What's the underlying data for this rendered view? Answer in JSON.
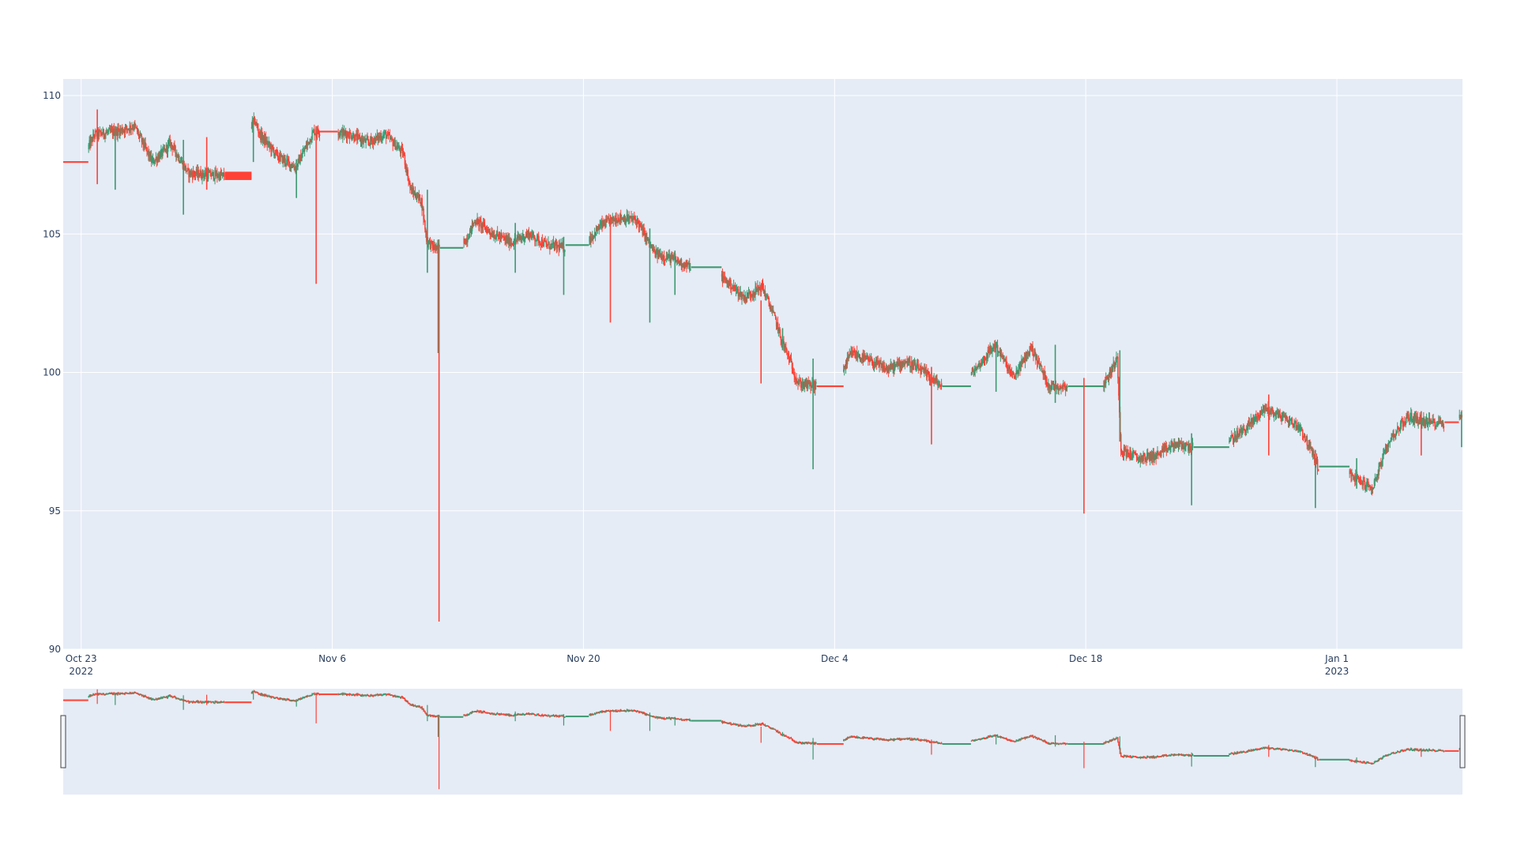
{
  "chart_data": {
    "type": "candlestick",
    "title": "",
    "xlabel": "",
    "ylabel": "",
    "ylim": [
      90,
      110.6
    ],
    "xlim": [
      "2022-10-22",
      "2023-01-08"
    ],
    "grid": true,
    "legend": "none",
    "rangeslider": true,
    "colors": {
      "increasing": "#3d9970",
      "decreasing": "#ff4136",
      "plot_bg": "#e5ecf6",
      "grid": "#ffffff",
      "tick_text": "#2a3f5f"
    },
    "y_ticks": [
      {
        "value": 90,
        "label": "90"
      },
      {
        "value": 95,
        "label": "95"
      },
      {
        "value": 100,
        "label": "100"
      },
      {
        "value": 105,
        "label": "105"
      },
      {
        "value": 110,
        "label": "110"
      }
    ],
    "x_ticks": [
      {
        "date": "2022-10-23",
        "label": "Oct 23",
        "sublabel": "2022"
      },
      {
        "date": "2022-11-06",
        "label": "Nov 6",
        "sublabel": ""
      },
      {
        "date": "2022-11-20",
        "label": "Nov 20",
        "sublabel": ""
      },
      {
        "date": "2022-12-04",
        "label": "Dec 4",
        "sublabel": ""
      },
      {
        "date": "2022-12-18",
        "label": "Dec 18",
        "sublabel": ""
      },
      {
        "date": "2023-01-01",
        "label": "Jan 1",
        "sublabel": "2023"
      }
    ],
    "price_path": [
      [
        "2022-10-22",
        107.6
      ],
      [
        "2022-10-23",
        107.6
      ],
      [
        "2022-10-23.8",
        108.6
      ],
      [
        "2022-10-25",
        108.7
      ],
      [
        "2022-10-26",
        108.9
      ],
      [
        "2022-10-27",
        107.6
      ],
      [
        "2022-10-27.7",
        108.0
      ],
      [
        "2022-10-28",
        108.3
      ],
      [
        "2022-10-29",
        107.2
      ],
      [
        "2022-10-31",
        107.1
      ],
      [
        "2022-11-01",
        108.4
      ],
      [
        "2022-11-01.7",
        109.1
      ],
      [
        "2022-11-02",
        108.6
      ],
      [
        "2022-11-03",
        107.8
      ],
      [
        "2022-11-04",
        107.4
      ],
      [
        "2022-11-05",
        108.7
      ],
      [
        "2022-11-05.3",
        108.7
      ],
      [
        "2022-11-06",
        108.7
      ],
      [
        "2022-11-07",
        108.6
      ],
      [
        "2022-11-08",
        108.3
      ],
      [
        "2022-11-09",
        108.6
      ],
      [
        "2022-11-10",
        107.9
      ],
      [
        "2022-11-10.4",
        106.6
      ],
      [
        "2022-11-11",
        106.2
      ],
      [
        "2022-11-11.3",
        104.8
      ],
      [
        "2022-11-11.7",
        104.5
      ],
      [
        "2022-11-12",
        104.5
      ],
      [
        "2022-11-13",
        104.5
      ],
      [
        "2022-11-13.5",
        104.8
      ],
      [
        "2022-11-14",
        105.5
      ],
      [
        "2022-11-15",
        105.0
      ],
      [
        "2022-11-16",
        104.7
      ],
      [
        "2022-11-17",
        105.0
      ],
      [
        "2022-11-18",
        104.6
      ],
      [
        "2022-11-19",
        104.5
      ],
      [
        "2022-11-20",
        104.5
      ],
      [
        "2022-11-21",
        105.3
      ],
      [
        "2022-11-22",
        105.6
      ],
      [
        "2022-11-23",
        105.5
      ],
      [
        "2022-11-24",
        104.3
      ],
      [
        "2022-11-25",
        104.1
      ],
      [
        "2022-11-26",
        103.8
      ],
      [
        "2022-11-27",
        103.8
      ],
      [
        "2022-11-28",
        103.3
      ],
      [
        "2022-11-29",
        102.7
      ],
      [
        "2022-11-30",
        103.1
      ],
      [
        "2022-11-30.8",
        101.8
      ],
      [
        "2022-12-01",
        101.3
      ],
      [
        "2022-12-01.5",
        100.5
      ],
      [
        "2022-12-02",
        99.6
      ],
      [
        "2022-12-03",
        99.5
      ],
      [
        "2022-12-04",
        99.5
      ],
      [
        "2022-12-05",
        100.7
      ],
      [
        "2022-12-06",
        100.4
      ],
      [
        "2022-12-07",
        100.1
      ],
      [
        "2022-12-08",
        100.4
      ],
      [
        "2022-12-09",
        100.0
      ],
      [
        "2022-12-10",
        99.5
      ],
      [
        "2022-12-11",
        99.5
      ],
      [
        "2022-12-12",
        100.2
      ],
      [
        "2022-12-13",
        101.0
      ],
      [
        "2022-12-14",
        99.8
      ],
      [
        "2022-12-15",
        100.9
      ],
      [
        "2022-12-16",
        99.5
      ],
      [
        "2022-12-17",
        99.5
      ],
      [
        "2022-12-18",
        99.5
      ],
      [
        "2022-12-19",
        99.5
      ],
      [
        "2022-12-19.8",
        100.5
      ],
      [
        "2022-12-20",
        97.2
      ],
      [
        "2022-12-21",
        96.9
      ],
      [
        "2022-12-22",
        97.0
      ],
      [
        "2022-12-23",
        97.4
      ],
      [
        "2022-12-24",
        97.3
      ],
      [
        "2022-12-25",
        97.3
      ],
      [
        "2022-12-26",
        97.5
      ],
      [
        "2022-12-27",
        98.0
      ],
      [
        "2022-12-28",
        98.7
      ],
      [
        "2022-12-29",
        98.4
      ],
      [
        "2022-12-30",
        98.0
      ],
      [
        "2022-12-31",
        96.6
      ],
      [
        "2023-01-01",
        96.6
      ],
      [
        "2023-01-02",
        96.2
      ],
      [
        "2023-01-03",
        95.8
      ],
      [
        "2023-01-04",
        97.6
      ],
      [
        "2023-01-05",
        98.4
      ],
      [
        "2023-01-06",
        98.2
      ],
      [
        "2023-01-07",
        98.2
      ],
      [
        "2023-01-08",
        98.4
      ]
    ],
    "flat_segments": [
      {
        "start": "2022-10-22",
        "end": "2022-10-23.4",
        "price": 107.6,
        "direction": "down"
      },
      {
        "start": "2022-10-31",
        "end": "2022-11-01.5",
        "price": 107.1,
        "direction": "down",
        "body_low": 106.95,
        "body_high": 107.25
      },
      {
        "start": "2022-11-05.3",
        "end": "2022-11-06.3",
        "price": 108.7,
        "direction": "down"
      },
      {
        "start": "2022-11-12",
        "end": "2022-11-13.3",
        "price": 104.5,
        "direction": "up"
      },
      {
        "start": "2022-11-19",
        "end": "2022-11-20.3",
        "price": 104.6,
        "direction": "up"
      },
      {
        "start": "2022-11-26",
        "end": "2022-11-27.7",
        "price": 103.8,
        "direction": "up"
      },
      {
        "start": "2022-12-03",
        "end": "2022-12-04.5",
        "price": 99.5,
        "direction": "down"
      },
      {
        "start": "2022-12-10",
        "end": "2022-12-11.6",
        "price": 99.5,
        "direction": "up"
      },
      {
        "start": "2022-12-17",
        "end": "2022-12-19",
        "price": 99.5,
        "direction": "up"
      },
      {
        "start": "2022-12-24",
        "end": "2022-12-26",
        "price": 97.3,
        "direction": "up"
      },
      {
        "start": "2022-12-31",
        "end": "2023-01-01.7",
        "price": 96.6,
        "direction": "up"
      },
      {
        "start": "2023-01-07",
        "end": "2023-01-07.8",
        "price": 98.2,
        "direction": "down"
      }
    ],
    "spikes": [
      {
        "date": "2022-10-23.9",
        "low": 106.8,
        "high": 109.5
      },
      {
        "date": "2022-10-24.9",
        "low": 106.6,
        "high": 108.9
      },
      {
        "date": "2022-10-28.7",
        "low": 105.7,
        "high": 108.4
      },
      {
        "date": "2022-10-30.0",
        "low": 106.6,
        "high": 108.5
      },
      {
        "date": "2022-11-01.6",
        "low": 107.6,
        "high": 109.2
      },
      {
        "date": "2022-11-04.0",
        "low": 106.3,
        "high": 107.7
      },
      {
        "date": "2022-11-05.1",
        "low": 103.2,
        "high": 108.9
      },
      {
        "date": "2022-11-11.3",
        "low": 103.6,
        "high": 106.6
      },
      {
        "date": "2022-11-11.9",
        "low": 100.7,
        "high": 104.8
      },
      {
        "date": "2022-11-11.95",
        "low": 91.0,
        "high": 104.6
      },
      {
        "date": "2022-11-16.2",
        "low": 103.6,
        "high": 105.4
      },
      {
        "date": "2022-11-18.9",
        "low": 102.8,
        "high": 104.9
      },
      {
        "date": "2022-11-21.5",
        "low": 101.8,
        "high": 105.7
      },
      {
        "date": "2022-11-23.7",
        "low": 101.8,
        "high": 105.2
      },
      {
        "date": "2022-11-25.1",
        "low": 102.8,
        "high": 104.4
      },
      {
        "date": "2022-11-29.9",
        "low": 99.6,
        "high": 102.6
      },
      {
        "date": "2022-12-01.1",
        "low": 100.8,
        "high": 101.6
      },
      {
        "date": "2022-12-02.8",
        "low": 96.5,
        "high": 100.5
      },
      {
        "date": "2022-12-09.4",
        "low": 97.4,
        "high": 100.2
      },
      {
        "date": "2022-12-13.0",
        "low": 99.3,
        "high": 101.1
      },
      {
        "date": "2022-12-16.3",
        "low": 98.9,
        "high": 101.0
      },
      {
        "date": "2022-12-17.9",
        "low": 94.9,
        "high": 99.8
      },
      {
        "date": "2022-12-19.9",
        "low": 97.5,
        "high": 100.8
      },
      {
        "date": "2022-12-23.9",
        "low": 95.2,
        "high": 97.8
      },
      {
        "date": "2022-12-28.2",
        "low": 97.0,
        "high": 99.2
      },
      {
        "date": "2022-12-30.8",
        "low": 95.1,
        "high": 97.2
      },
      {
        "date": "2023-01-02.1",
        "low": 95.8,
        "high": 96.9
      },
      {
        "date": "2023-01-05.7",
        "low": 97.0,
        "high": 98.6
      },
      {
        "date": "2023-01-07.95",
        "low": 97.3,
        "high": 98.6
      }
    ]
  }
}
